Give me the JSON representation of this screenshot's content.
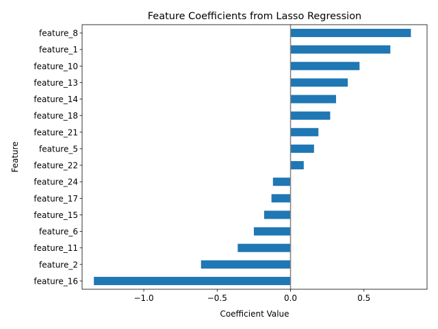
{
  "chart_data": {
    "type": "bar",
    "orientation": "horizontal",
    "title": "Feature Coefficients from Lasso Regression",
    "xlabel": "Coefficient Value",
    "ylabel": "Feature",
    "categories": [
      "feature_8",
      "feature_1",
      "feature_10",
      "feature_13",
      "feature_14",
      "feature_18",
      "feature_21",
      "feature_5",
      "feature_22",
      "feature_24",
      "feature_17",
      "feature_15",
      "feature_6",
      "feature_11",
      "feature_2",
      "feature_16"
    ],
    "values": [
      0.82,
      0.68,
      0.47,
      0.39,
      0.31,
      0.27,
      0.19,
      0.16,
      0.09,
      -0.12,
      -0.13,
      -0.18,
      -0.25,
      -0.36,
      -0.61,
      -1.34
    ],
    "xlim": [
      -1.42,
      0.93
    ],
    "xticks": [
      -1.0,
      -0.5,
      0.0,
      0.5
    ],
    "xtick_labels": [
      "−1.0",
      "−0.5",
      "0.0",
      "0.5"
    ],
    "zero_line": true,
    "grid": false,
    "colors": {
      "bar": "#1f77b4",
      "zero_line": "#808080",
      "axis": "#000000"
    }
  }
}
